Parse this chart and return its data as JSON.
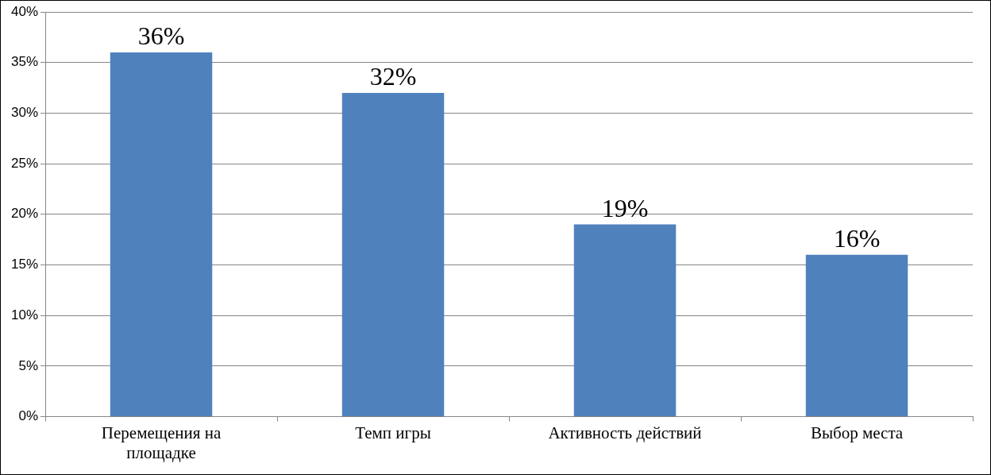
{
  "chart_data": {
    "type": "bar",
    "categories": [
      "Перемещения на площадке",
      "Темп игры",
      "Активность действий",
      "Выбор места"
    ],
    "series": [
      {
        "color": "#4f81bd",
        "values": [
          36,
          32,
          19,
          16
        ],
        "value_labels": [
          "36%",
          "32%",
          "19%",
          "16%"
        ]
      }
    ],
    "ylim": [
      0,
      40
    ],
    "yticks": [
      {
        "value": 0,
        "label": "0%"
      },
      {
        "value": 5,
        "label": "5%"
      },
      {
        "value": 10,
        "label": "10%"
      },
      {
        "value": 15,
        "label": "15%"
      },
      {
        "value": 20,
        "label": "20%"
      },
      {
        "value": 25,
        "label": "25%"
      },
      {
        "value": 30,
        "label": "30%"
      },
      {
        "value": 35,
        "label": "35%"
      },
      {
        "value": 40,
        "label": "40%"
      }
    ],
    "grid": "y",
    "legend": false
  }
}
